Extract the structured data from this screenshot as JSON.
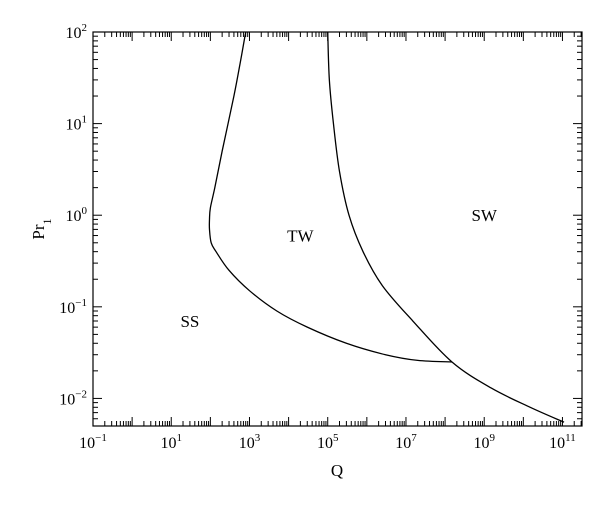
{
  "chart_data": {
    "type": "line",
    "title": "",
    "xlabel": "Q",
    "ylabel_base": "Pr",
    "ylabel_sub": "1",
    "xscale": "log",
    "yscale": "log",
    "xlim": [
      0.1,
      316000000000.0
    ],
    "ylim": [
      0.005,
      100
    ],
    "grid": false,
    "x_ticks": [
      {
        "value": 0.1,
        "base": "10",
        "exp": "−1"
      },
      {
        "value": 10,
        "base": "10",
        "exp": "1"
      },
      {
        "value": 1000,
        "base": "10",
        "exp": "3"
      },
      {
        "value": 100000,
        "base": "10",
        "exp": "5"
      },
      {
        "value": 10000000,
        "base": "10",
        "exp": "7"
      },
      {
        "value": 1000000000,
        "base": "10",
        "exp": "9"
      },
      {
        "value": 100000000000,
        "base": "10",
        "exp": "11"
      }
    ],
    "y_ticks": [
      {
        "value": 0.01,
        "base": "10",
        "exp": "−2"
      },
      {
        "value": 0.1,
        "base": "10",
        "exp": "−1"
      },
      {
        "value": 1,
        "base": "10",
        "exp": "0"
      },
      {
        "value": 10,
        "base": "10",
        "exp": "1"
      },
      {
        "value": 100,
        "base": "10",
        "exp": "2"
      }
    ],
    "regions": [
      {
        "label": "SS",
        "x": 30,
        "y": 0.07
      },
      {
        "label": "TW",
        "x": 20000,
        "y": 0.6
      },
      {
        "label": "SW",
        "x": 1000000000,
        "y": 1.0
      }
    ],
    "series": [
      {
        "x": [
          800,
          600,
          400,
          200,
          130,
          100,
          95,
          95,
          105,
          140,
          300,
          1000,
          5000,
          30000,
          300000,
          3000000,
          20000000,
          150000000
        ],
        "y": [
          100,
          50,
          20,
          5,
          2,
          1.2,
          0.9,
          0.7,
          0.5,
          0.4,
          0.25,
          0.15,
          0.09,
          0.06,
          0.04,
          0.03,
          0.026,
          0.025
        ]
      },
      {
        "x": [
          100000,
          110000,
          140000,
          200000,
          350000,
          800000,
          2500000,
          15000000,
          150000000,
          1500000000,
          15000000000,
          110000000000
        ],
        "y": [
          100,
          30,
          10,
          3,
          1,
          0.4,
          0.17,
          0.07,
          0.025,
          0.013,
          0.008,
          0.0055
        ]
      }
    ]
  }
}
